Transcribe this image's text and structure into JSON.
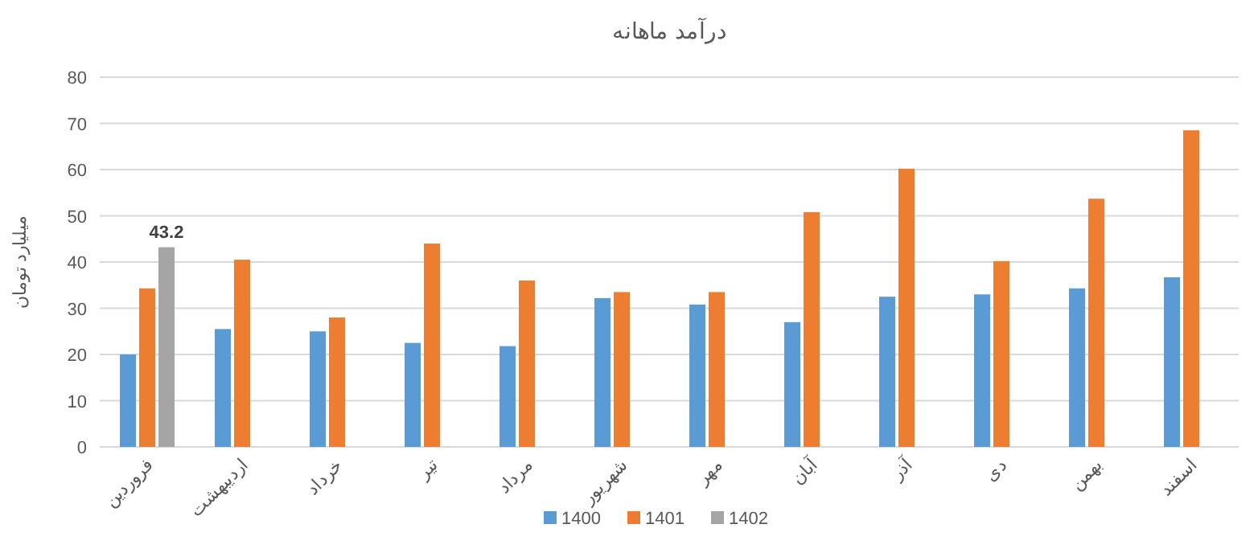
{
  "chart_data": {
    "type": "bar",
    "title": "درآمد ماهانه",
    "ylabel": "میلیارد تومان",
    "categories": [
      "فروردین",
      "اردیبهشت",
      "خرداد",
      "تیر",
      "مرداد",
      "شهریور",
      "مهر",
      "آبان",
      "آذر",
      "دی",
      "بهمن",
      "اسفند"
    ],
    "series": [
      {
        "name": "1400",
        "color": "#5b9bd5",
        "values": [
          20,
          25.5,
          25,
          22.5,
          21.8,
          32.2,
          30.8,
          27,
          32.5,
          33,
          34.3,
          36.7
        ]
      },
      {
        "name": "1401",
        "color": "#ed7d31",
        "values": [
          34.3,
          40.5,
          28,
          44,
          36,
          33.5,
          33.5,
          50.8,
          60.2,
          40.2,
          53.7,
          68.5
        ]
      },
      {
        "name": "1402",
        "color": "#a5a5a5",
        "values": [
          43.2,
          null,
          null,
          null,
          null,
          null,
          null,
          null,
          null,
          null,
          null,
          null
        ],
        "value_labels": [
          "43.2",
          null,
          null,
          null,
          null,
          null,
          null,
          null,
          null,
          null,
          null,
          null
        ]
      }
    ],
    "ylim": [
      0,
      80
    ],
    "yticks": [
      0,
      10,
      20,
      30,
      40,
      50,
      60,
      70,
      80
    ],
    "grid": "y",
    "legend": "bottom"
  }
}
